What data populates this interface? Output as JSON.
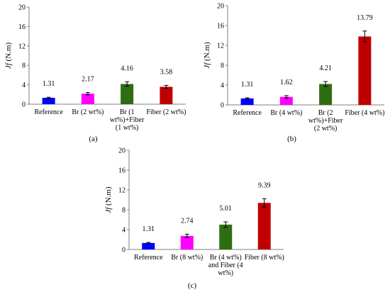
{
  "chart_data": [
    {
      "type": "bar",
      "panel_label": "(a)",
      "ylabel": "Jf (N.m)",
      "ylabel_var": "Jf",
      "ylabel_unit": "(N.m)",
      "ylim": [
        0,
        20
      ],
      "yticks": [
        0,
        4,
        8,
        12,
        16,
        20
      ],
      "categories": [
        [
          "Reference"
        ],
        [
          "Br (2 wt%)"
        ],
        [
          "Br (1",
          "wt%)+Fiber",
          "(1 wt%)"
        ],
        [
          "Fiber (2 wt%)"
        ]
      ],
      "values": [
        1.31,
        2.17,
        4.16,
        3.58
      ],
      "value_labels": [
        "1.31",
        "2.17",
        "4.16",
        "3.58"
      ],
      "errors": [
        0.12,
        0.25,
        0.45,
        0.3
      ],
      "colors": [
        "#0000ff",
        "#ff00ff",
        "#2f6d13",
        "#c00000"
      ]
    },
    {
      "type": "bar",
      "panel_label": "(b)",
      "ylabel": "Jf (N.m)",
      "ylabel_var": "Jf",
      "ylabel_unit": "(N.m)",
      "ylim": [
        0,
        20
      ],
      "yticks": [
        0,
        4,
        8,
        12,
        16,
        20
      ],
      "categories": [
        [
          "Reference"
        ],
        [
          "Br (4 wt%)"
        ],
        [
          "Br (2",
          "wt%)+Fiber",
          "(2 wt%)"
        ],
        [
          "Fiber (4 wt%)"
        ]
      ],
      "values": [
        1.31,
        1.62,
        4.21,
        13.79
      ],
      "value_labels": [
        "1.31",
        "1.62",
        "4.21",
        "13.79"
      ],
      "errors": [
        0.12,
        0.25,
        0.5,
        1.1
      ],
      "colors": [
        "#0000ff",
        "#ff00ff",
        "#2f6d13",
        "#c00000"
      ]
    },
    {
      "type": "bar",
      "panel_label": "(c)",
      "ylabel": "Jf (N.m)",
      "ylabel_var": "Jf",
      "ylabel_unit": "(N.m)",
      "ylim": [
        0,
        20
      ],
      "yticks": [
        0,
        4,
        8,
        12,
        16,
        20
      ],
      "categories": [
        [
          "Reference"
        ],
        [
          "Br (8 wt%)"
        ],
        [
          "Br (4 wt%)",
          "and Fiber (4",
          "wt%)"
        ],
        [
          "Fiber (8 wt%)"
        ]
      ],
      "values": [
        1.31,
        2.74,
        5.01,
        9.39
      ],
      "value_labels": [
        "1.31",
        "2.74",
        "5.01",
        "9.39"
      ],
      "errors": [
        0.12,
        0.35,
        0.55,
        0.85
      ],
      "colors": [
        "#0000ff",
        "#ff00ff",
        "#2f6d13",
        "#c00000"
      ]
    }
  ]
}
